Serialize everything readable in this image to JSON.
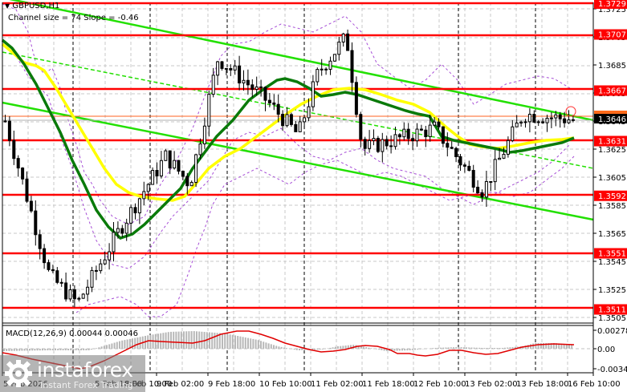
{
  "header": {
    "symbol": "GBPUSD,H1",
    "indicator": "Channel size = 74 Slope = -0.46"
  },
  "macd": {
    "label": "MACD(12,26,9) 0.00044 0.00046",
    "axis_labels": [
      "0.00278",
      "0.00",
      "-0.00346"
    ]
  },
  "watermark": {
    "brand": "instaforex",
    "tagline": "Instant Forex Trading"
  },
  "price_axis": {
    "ticks": [
      "1.3725",
      "1.3705",
      "1.3685",
      "1.3665",
      "1.3645",
      "1.3625",
      "1.3605",
      "1.3585",
      "1.3565",
      "1.3545",
      "1.3525",
      "1.3505"
    ],
    "current_price": "1.3646",
    "levels": [
      "1.3729",
      "1.3707",
      "1.3667",
      "1.3631",
      "1.3592",
      "1.3551",
      "1.3511"
    ]
  },
  "time_axis": {
    "labels": [
      "5 Feb 2026",
      "5 Feb 18:00",
      "6 Feb 10:00",
      "9 Feb 02:00",
      "9 Feb 18:00",
      "10 Feb 10:00",
      "11 Feb 02:00",
      "11 Feb 18:00",
      "12 Feb 10:00",
      "13 Feb 02:00",
      "13 Feb 18:00",
      "16 Feb 10:00"
    ]
  },
  "colors": {
    "level_line": "#ff0000",
    "channel": "#00e000",
    "ma_fast": "#008000",
    "ma_slow": "#ffff00",
    "envelope": "#9933cc",
    "macd_signal": "#ff0000",
    "macd_hist": "#b0b0b0"
  },
  "chart_data": {
    "type": "candlestick",
    "title": "GBPUSD,H1",
    "subtitle": "Channel size = 74 Slope = -0.46",
    "xlabel": "",
    "ylabel": "",
    "ylim": [
      1.35,
      1.3732
    ],
    "grid": true,
    "x_ticks": [
      "5 Feb 2026",
      "5 Feb 18:00",
      "6 Feb 10:00",
      "9 Feb 02:00",
      "9 Feb 18:00",
      "10 Feb 10:00",
      "11 Feb 02:00",
      "11 Feb 18:00",
      "12 Feb 10:00",
      "13 Feb 02:00",
      "13 Feb 18:00",
      "16 Feb 10:00"
    ],
    "y_ticks": [
      1.3725,
      1.3705,
      1.3685,
      1.3665,
      1.3645,
      1.3625,
      1.3605,
      1.3585,
      1.3565,
      1.3545,
      1.3525,
      1.3505
    ],
    "horizontal_levels": [
      1.3729,
      1.3707,
      1.3667,
      1.3631,
      1.3592,
      1.3551,
      1.3511
    ],
    "current_price": 1.3646,
    "approx_close_path": [
      {
        "x": "5 Feb 2026",
        "close": 1.3645
      },
      {
        "x": "5 Feb 18:00",
        "close": 1.3535
      },
      {
        "x": "6 Feb 02:00",
        "close": 1.3515
      },
      {
        "x": "6 Feb 10:00",
        "close": 1.357
      },
      {
        "x": "9 Feb 02:00",
        "close": 1.362
      },
      {
        "x": "9 Feb 10:00",
        "close": 1.36
      },
      {
        "x": "9 Feb 18:00",
        "close": 1.369
      },
      {
        "x": "10 Feb 10:00",
        "close": 1.366
      },
      {
        "x": "10 Feb 18:00",
        "close": 1.3635
      },
      {
        "x": "11 Feb 02:00",
        "close": 1.368
      },
      {
        "x": "11 Feb 10:00",
        "close": 1.3705
      },
      {
        "x": "11 Feb 18:00",
        "close": 1.3625
      },
      {
        "x": "12 Feb 10:00",
        "close": 1.364
      },
      {
        "x": "13 Feb 02:00",
        "close": 1.3595
      },
      {
        "x": "13 Feb 18:00",
        "close": 1.365
      },
      {
        "x": "16 Feb 10:00",
        "close": 1.3646
      }
    ],
    "series": [
      {
        "name": "Channel upper",
        "type": "line",
        "from": 1.3715,
        "to": 1.3645
      },
      {
        "name": "Channel middle (dashed)",
        "type": "line",
        "from": 1.369,
        "to": 1.3615
      },
      {
        "name": "Channel lower",
        "type": "line",
        "from": 1.3655,
        "to": 1.3575
      },
      {
        "name": "MA fast (dark green)",
        "type": "line"
      },
      {
        "name": "MA slow (yellow)",
        "type": "line"
      }
    ],
    "macd": {
      "params": "12,26,9",
      "main": 0.00044,
      "signal": 0.00046,
      "ylim": [
        -0.00346,
        0.00278
      ]
    }
  }
}
